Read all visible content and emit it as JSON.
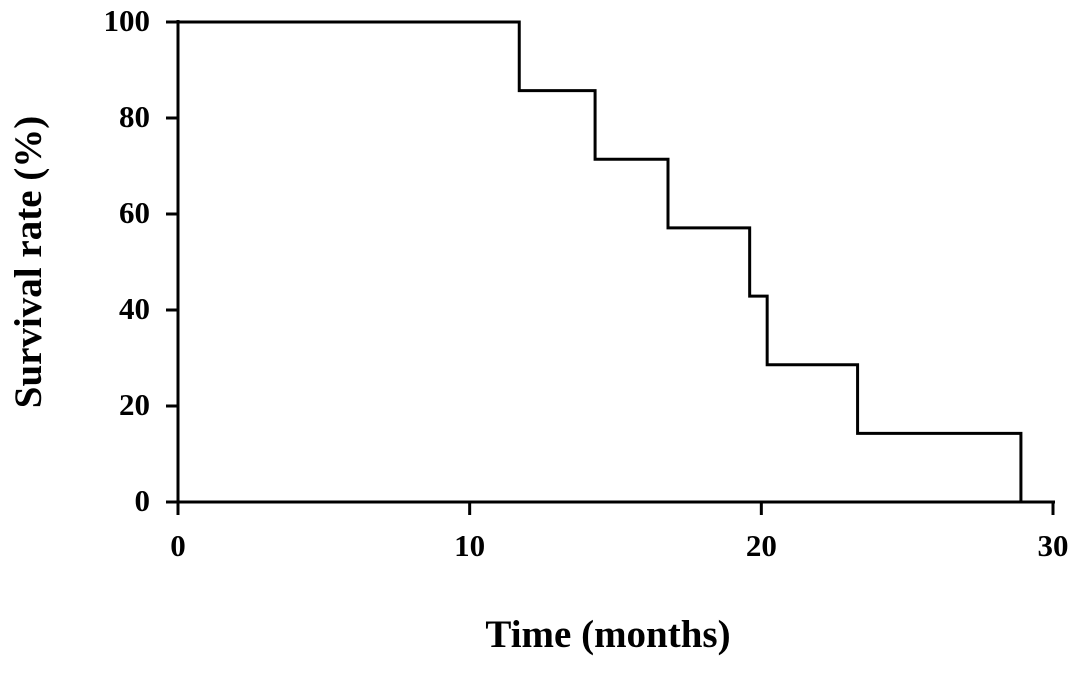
{
  "chart_data": {
    "type": "step",
    "x_label": "Time (months)",
    "y_label": "Survival rate (%)",
    "x": [
      0,
      11.7,
      14.3,
      16.8,
      19.6,
      20.2,
      23.3,
      28.9
    ],
    "values": [
      100,
      85.7,
      71.4,
      57.1,
      42.9,
      28.6,
      14.3,
      0
    ],
    "color": "#000000",
    "xlim": [
      0,
      30
    ],
    "xticks": [
      0,
      10,
      20,
      30
    ],
    "ylim": [
      0,
      100
    ],
    "yticks": [
      0,
      20,
      40,
      60,
      80,
      100
    ],
    "grid": false
  }
}
